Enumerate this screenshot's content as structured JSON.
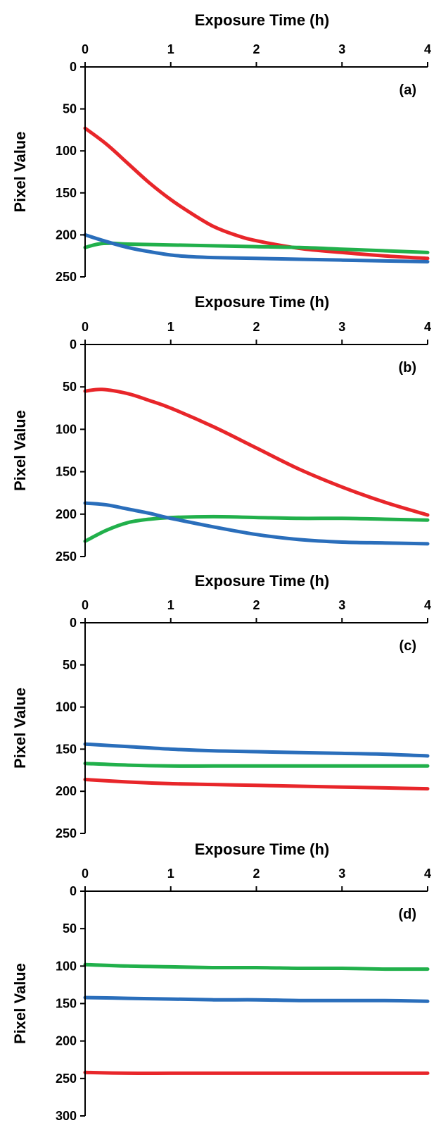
{
  "chart_data": [
    {
      "type": "line",
      "panel_label": "(a)",
      "xlabel": "Exposure Time (h)",
      "ylabel": "Pixel Value",
      "xlim": [
        0,
        4
      ],
      "ylim": [
        0,
        250
      ],
      "y_inverted": true,
      "x_axis_position": "top",
      "grid": false,
      "xticks": [
        "0",
        "1",
        "2",
        "3",
        "4"
      ],
      "yticks": [
        "0",
        "50",
        "100",
        "150",
        "200",
        "250"
      ],
      "series": [
        {
          "color": "#e8262a",
          "x": [
            0,
            0.25,
            0.5,
            0.75,
            1,
            1.25,
            1.5,
            1.75,
            2,
            2.5,
            3,
            3.5,
            4
          ],
          "y": [
            73,
            92,
            115,
            138,
            158,
            175,
            190,
            200,
            207,
            216,
            221,
            225,
            228
          ]
        },
        {
          "color": "#21b04b",
          "x": [
            0,
            0.15,
            0.3,
            0.5,
            1,
            1.5,
            2,
            2.5,
            3,
            3.5,
            4
          ],
          "y": [
            215,
            211,
            210,
            211,
            212,
            213,
            214,
            215,
            217,
            219,
            221
          ]
        },
        {
          "color": "#2a6ebb",
          "x": [
            0,
            0.25,
            0.5,
            0.75,
            1,
            1.25,
            1.5,
            2,
            2.5,
            3,
            3.5,
            4
          ],
          "y": [
            200,
            208,
            215,
            220,
            224,
            226,
            227,
            228,
            229,
            230,
            231,
            232
          ]
        }
      ]
    },
    {
      "type": "line",
      "panel_label": "(b)",
      "xlabel": "Exposure Time (h)",
      "ylabel": "Pixel Value",
      "xlim": [
        0,
        4
      ],
      "ylim": [
        0,
        250
      ],
      "y_inverted": true,
      "x_axis_position": "top",
      "grid": false,
      "xticks": [
        "0",
        "1",
        "2",
        "3",
        "4"
      ],
      "yticks": [
        "0",
        "50",
        "100",
        "150",
        "200",
        "250"
      ],
      "series": [
        {
          "color": "#e8262a",
          "x": [
            0,
            0.2,
            0.5,
            0.75,
            1,
            1.5,
            2,
            2.5,
            3,
            3.5,
            4
          ],
          "y": [
            55,
            53,
            58,
            66,
            75,
            97,
            122,
            147,
            168,
            186,
            201
          ]
        },
        {
          "color": "#21b04b",
          "x": [
            0,
            0.25,
            0.5,
            0.75,
            1,
            1.5,
            2,
            2.5,
            3,
            3.5,
            4
          ],
          "y": [
            232,
            219,
            210,
            206,
            204,
            203,
            204,
            205,
            205,
            206,
            207
          ]
        },
        {
          "color": "#2a6ebb",
          "x": [
            0,
            0.25,
            0.5,
            0.75,
            1,
            1.5,
            2,
            2.5,
            3,
            3.5,
            4
          ],
          "y": [
            187,
            189,
            194,
            199,
            205,
            215,
            224,
            230,
            233,
            234,
            235
          ]
        }
      ]
    },
    {
      "type": "line",
      "panel_label": "(c)",
      "xlabel": "Exposure Time (h)",
      "ylabel": "Pixel Value",
      "xlim": [
        0,
        4
      ],
      "ylim": [
        0,
        250
      ],
      "y_inverted": true,
      "x_axis_position": "top",
      "grid": false,
      "xticks": [
        "0",
        "1",
        "2",
        "3",
        "4"
      ],
      "yticks": [
        "0",
        "50",
        "100",
        "150",
        "200",
        "250"
      ],
      "series": [
        {
          "color": "#2a6ebb",
          "x": [
            0,
            0.5,
            1,
            1.5,
            2,
            2.5,
            3,
            3.5,
            4
          ],
          "y": [
            144,
            147,
            150,
            152,
            153,
            154,
            155,
            156,
            158
          ]
        },
        {
          "color": "#21b04b",
          "x": [
            0,
            0.5,
            1,
            1.5,
            2,
            2.5,
            3,
            3.5,
            4
          ],
          "y": [
            167,
            169,
            170,
            170,
            170,
            170,
            170,
            170,
            170
          ]
        },
        {
          "color": "#e8262a",
          "x": [
            0,
            0.5,
            1,
            1.5,
            2,
            2.5,
            3,
            3.5,
            4
          ],
          "y": [
            186,
            189,
            191,
            192,
            193,
            194,
            195,
            196,
            197
          ]
        }
      ]
    },
    {
      "type": "line",
      "panel_label": "(d)",
      "xlabel": "Exposure Time (h)",
      "ylabel": "Pixel Value",
      "xlim": [
        0,
        4
      ],
      "ylim": [
        0,
        300
      ],
      "y_inverted": true,
      "x_axis_position": "top",
      "grid": false,
      "xticks": [
        "0",
        "1",
        "2",
        "3",
        "4"
      ],
      "yticks": [
        "0",
        "50",
        "100",
        "150",
        "200",
        "250",
        "300"
      ],
      "series": [
        {
          "color": "#21b04b",
          "x": [
            0,
            0.5,
            1,
            1.5,
            2,
            2.5,
            3,
            3.5,
            4
          ],
          "y": [
            98,
            100,
            101,
            102,
            102,
            103,
            103,
            104,
            104
          ]
        },
        {
          "color": "#2a6ebb",
          "x": [
            0,
            0.5,
            1,
            1.5,
            2,
            2.5,
            3,
            3.5,
            4
          ],
          "y": [
            142,
            143,
            144,
            145,
            145,
            146,
            146,
            146,
            147
          ]
        },
        {
          "color": "#e8262a",
          "x": [
            0,
            0.5,
            1,
            1.5,
            2,
            2.5,
            3,
            3.5,
            4
          ],
          "y": [
            242,
            243,
            243,
            243,
            243,
            243,
            243,
            243,
            243
          ]
        }
      ]
    }
  ]
}
